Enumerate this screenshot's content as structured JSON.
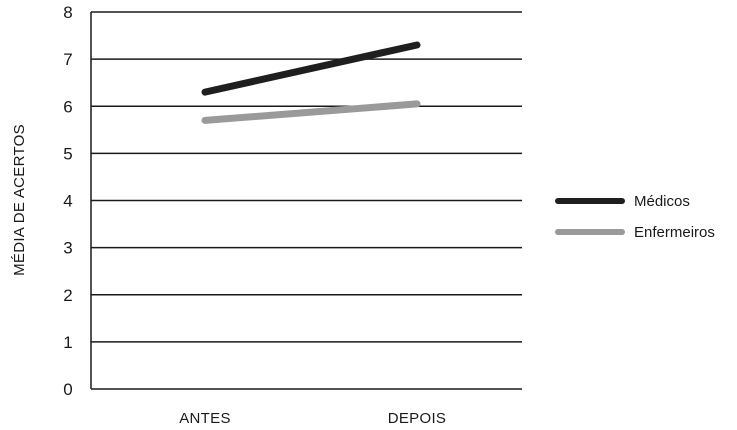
{
  "chart_data": {
    "type": "line",
    "title": "",
    "xlabel": "",
    "ylabel": "MÉDIA DE ACERTOS",
    "categories": [
      "ANTES",
      "DEPOIS"
    ],
    "ylim": [
      0,
      8
    ],
    "yticks": [
      "0",
      "1",
      "2",
      "3",
      "4",
      "5",
      "6",
      "7",
      "8"
    ],
    "grid": true,
    "legend_position": "right",
    "series": [
      {
        "name": "Médicos",
        "values": [
          6.3,
          7.3
        ],
        "color": "#1f1f1f"
      },
      {
        "name": "Enfermeiros",
        "values": [
          5.7,
          6.05
        ],
        "color": "#9a9a9a"
      }
    ]
  }
}
